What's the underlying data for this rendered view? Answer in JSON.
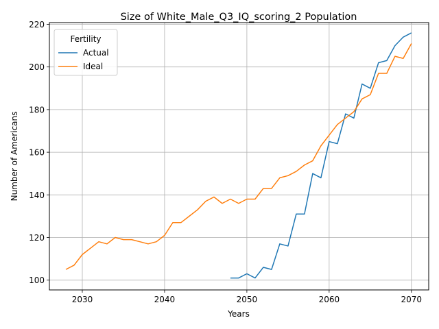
{
  "chart_data": {
    "type": "line",
    "title": "Size of White_Male_Q3_IQ_scoring_2 Population",
    "xlabel": "Years",
    "ylabel": "Number of Americans",
    "xlim": [
      2026.0,
      2072.1
    ],
    "ylim": [
      95.4,
      220.8
    ],
    "xticks": [
      2030,
      2040,
      2050,
      2060,
      2070
    ],
    "yticks": [
      100,
      120,
      140,
      160,
      180,
      200,
      220
    ],
    "grid": true,
    "legend": {
      "title": "Fertility",
      "placement": "top-left"
    },
    "series": [
      {
        "name": "Actual",
        "color": "#1f77b4",
        "x": [
          2048,
          2049,
          2050,
          2051,
          2052,
          2053,
          2054,
          2055,
          2056,
          2057,
          2058,
          2059,
          2060,
          2061,
          2062,
          2063,
          2064,
          2065,
          2066,
          2067,
          2068,
          2069,
          2070
        ],
        "y": [
          101,
          101,
          103,
          101,
          106,
          105,
          117,
          116,
          131,
          131,
          150,
          148,
          165,
          164,
          178,
          176,
          192,
          190,
          202,
          203,
          210,
          214,
          216
        ]
      },
      {
        "name": "Ideal",
        "color": "#ff7f0e",
        "x": [
          2028,
          2029,
          2030,
          2031,
          2032,
          2033,
          2034,
          2035,
          2036,
          2037,
          2038,
          2039,
          2040,
          2041,
          2042,
          2043,
          2044,
          2045,
          2046,
          2047,
          2048,
          2049,
          2050,
          2051,
          2052,
          2053,
          2054,
          2055,
          2056,
          2057,
          2058,
          2059,
          2060,
          2061,
          2062,
          2063,
          2064,
          2065,
          2066,
          2067,
          2068,
          2069,
          2070
        ],
        "y": [
          105,
          107,
          112,
          115,
          118,
          117,
          120,
          119,
          119,
          118,
          117,
          118,
          121,
          127,
          127,
          130,
          133,
          137,
          139,
          136,
          138,
          136,
          138,
          138,
          143,
          143,
          148,
          149,
          151,
          154,
          156,
          163,
          168,
          173,
          176,
          179,
          185,
          187,
          197,
          197,
          205,
          204,
          211
        ]
      }
    ]
  }
}
